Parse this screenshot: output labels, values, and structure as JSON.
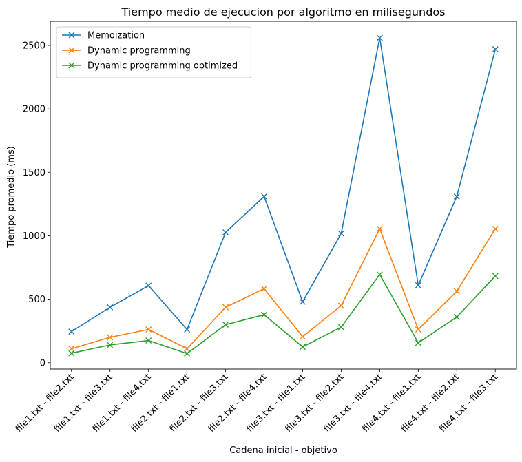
{
  "chart_data": {
    "type": "line",
    "title": "Tiempo medio de ejecucion por algoritmo en milisegundos",
    "xlabel": "Cadena inicial - objetivo",
    "ylabel": "Tiempo promedio (ms)",
    "ylim": [
      -50,
      2690
    ],
    "yticks": [
      0,
      500,
      1000,
      1500,
      2000,
      2500
    ],
    "grid": false,
    "legend_position": "top-left",
    "marker": "x",
    "categories": [
      "file1.txt - file2.txt",
      "file1.txt - file3.txt",
      "file1.txt - file4.txt",
      "file2.txt - file1.txt",
      "file2.txt - file3.txt",
      "file2.txt - file4.txt",
      "file3.txt - file1.txt",
      "file3.txt - file2.txt",
      "file3.txt - file4.txt",
      "file4.txt - file1.txt",
      "file4.txt - file2.txt",
      "file4.txt - file3.txt"
    ],
    "series": [
      {
        "name": "Memoization",
        "color": "#1f77b4",
        "values": [
          245,
          437,
          607,
          262,
          1027,
          1310,
          480,
          1018,
          2560,
          610,
          1310,
          2470
        ]
      },
      {
        "name": "Dynamic programming",
        "color": "#ff7f0e",
        "values": [
          110,
          200,
          262,
          110,
          437,
          583,
          205,
          450,
          1055,
          262,
          563,
          1055
        ]
      },
      {
        "name": "Dynamic programming optimized",
        "color": "#2ca02c",
        "values": [
          75,
          140,
          175,
          72,
          300,
          378,
          125,
          280,
          695,
          157,
          360,
          683
        ]
      }
    ]
  }
}
